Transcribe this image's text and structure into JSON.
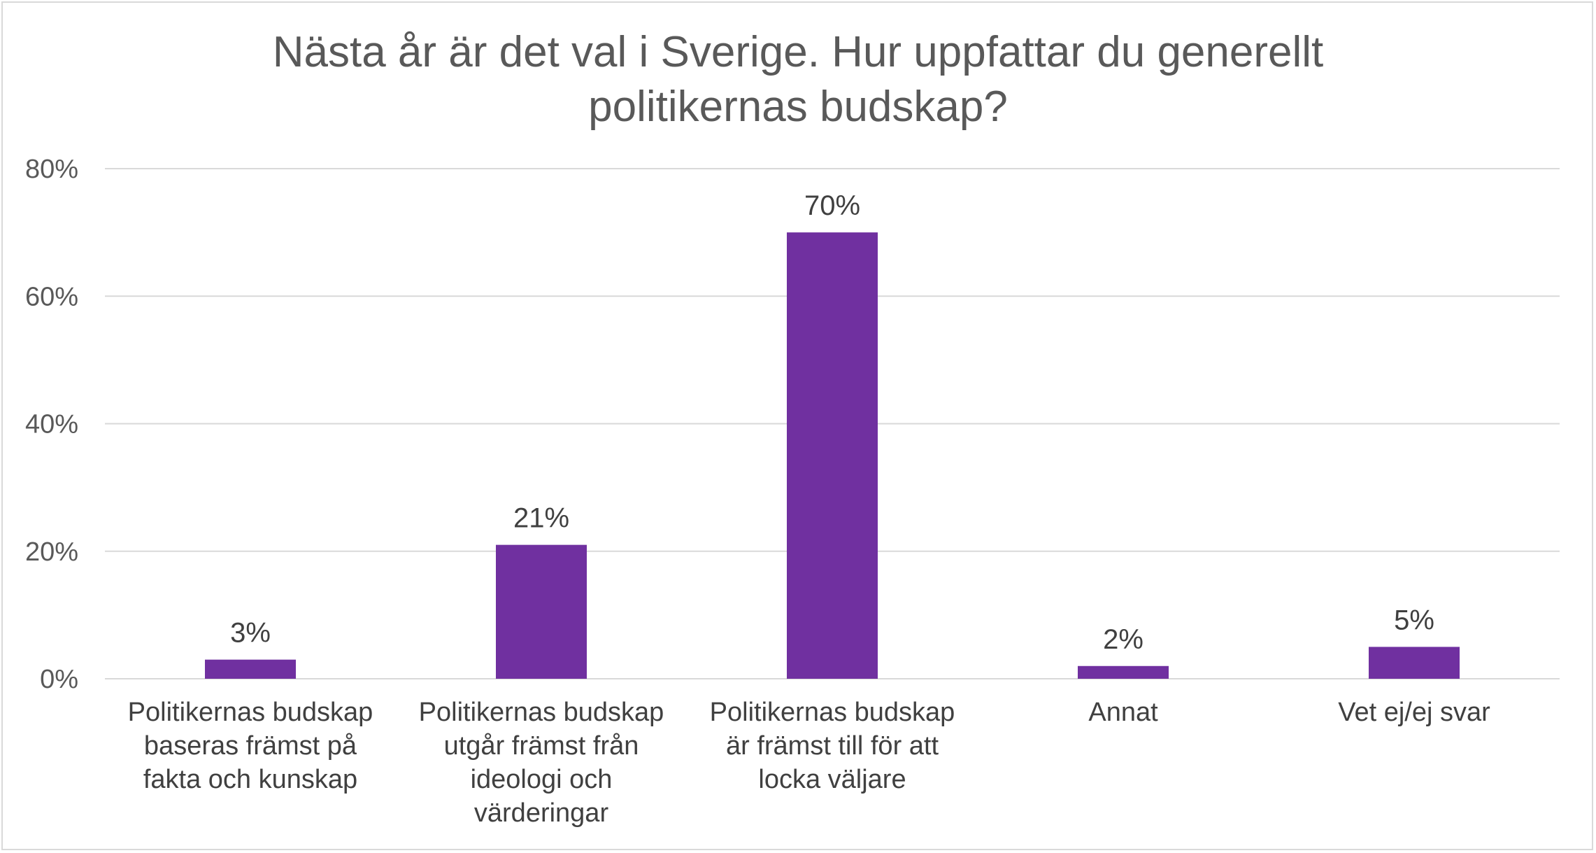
{
  "chart_data": {
    "type": "bar",
    "title_lines": [
      "Nästa år är det val i Sverige. Hur uppfattar du generellt",
      "politikernas budskap?"
    ],
    "categories": [
      [
        "Politikernas budskap",
        "baseras främst på",
        "fakta och kunskap"
      ],
      [
        "Politikernas budskap",
        "utgår främst från",
        "ideologi och",
        "värderingar"
      ],
      [
        "Politikernas budskap",
        "är främst till för att",
        "locka väljare"
      ],
      [
        "Annat"
      ],
      [
        "Vet ej/ej svar"
      ]
    ],
    "values": [
      3,
      21,
      70,
      2,
      5
    ],
    "value_labels": [
      "3%",
      "21%",
      "70%",
      "2%",
      "5%"
    ],
    "ylim": [
      0,
      80
    ],
    "yticks": [
      0,
      20,
      40,
      60,
      80
    ],
    "ytick_labels": [
      "0%",
      "20%",
      "40%",
      "60%",
      "80%"
    ],
    "xlabel": "",
    "ylabel": "",
    "grid": true,
    "legend": false,
    "colors": {
      "bar": "#7030a0",
      "grid": "#d9d9d9",
      "text": "#595959"
    }
  }
}
